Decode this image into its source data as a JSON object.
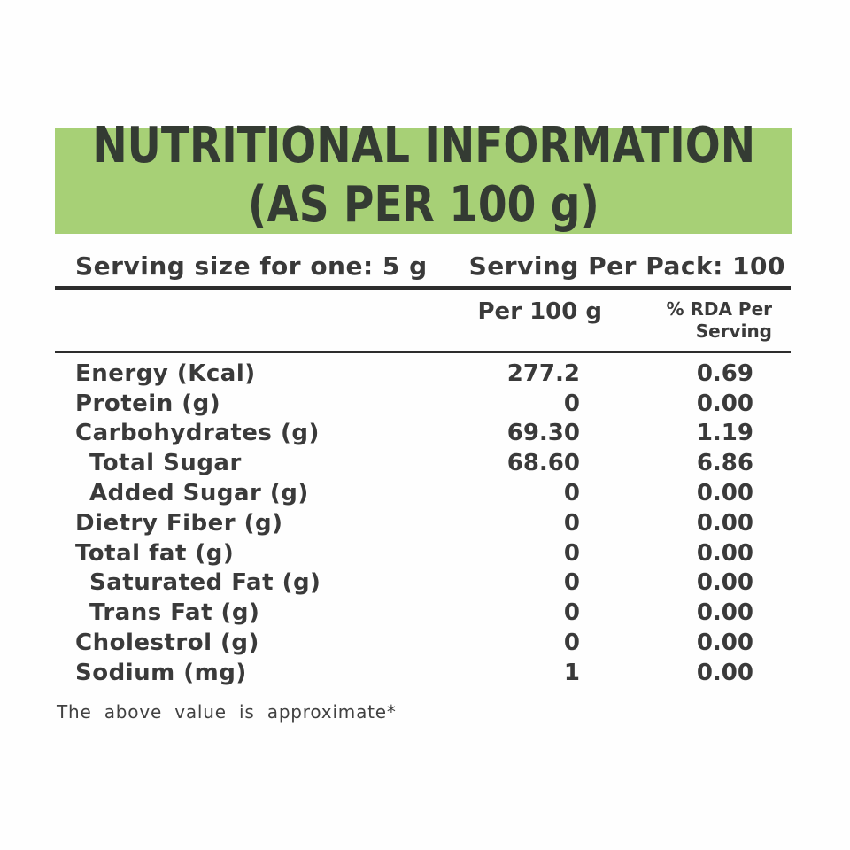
{
  "banner": {
    "title_line1": "NUTRITIONAL INFORMATION",
    "title_line2": "(AS PER 100 g)",
    "bg_color": "#a7d076",
    "text_color": "#343b33"
  },
  "serving": {
    "size_label": "Serving size for one: 5 g",
    "per_pack_label": "Serving Per Pack: 100"
  },
  "table": {
    "col2_header": "Per 100 g",
    "col3_header_line1": "% RDA Per",
    "col3_header_line2": "Serving",
    "rows": [
      {
        "label": "Energy (Kcal)",
        "per100": "277.2",
        "rda": "0.69",
        "indent": false
      },
      {
        "label": "Protein (g)",
        "per100": "0",
        "rda": "0.00",
        "indent": false
      },
      {
        "label": "Carbohydrates (g)",
        "per100": "69.30",
        "rda": "1.19",
        "indent": false
      },
      {
        "label": "Total Sugar",
        "per100": "68.60",
        "rda": "6.86",
        "indent": true
      },
      {
        "label": "Added Sugar (g)",
        "per100": "0",
        "rda": "0.00",
        "indent": true
      },
      {
        "label": "Dietry Fiber (g)",
        "per100": "0",
        "rda": "0.00",
        "indent": false
      },
      {
        "label": "Total fat (g)",
        "per100": "0",
        "rda": "0.00",
        "indent": false
      },
      {
        "label": "Saturated Fat (g)",
        "per100": "0",
        "rda": "0.00",
        "indent": true
      },
      {
        "label": "Trans Fat (g)",
        "per100": "0",
        "rda": "0.00",
        "indent": true
      },
      {
        "label": "Cholestrol (g)",
        "per100": "0",
        "rda": "0.00",
        "indent": false
      },
      {
        "label": "Sodium (mg)",
        "per100": "1",
        "rda": "0.00",
        "indent": false
      }
    ]
  },
  "footnote": "The above value is approximate*"
}
